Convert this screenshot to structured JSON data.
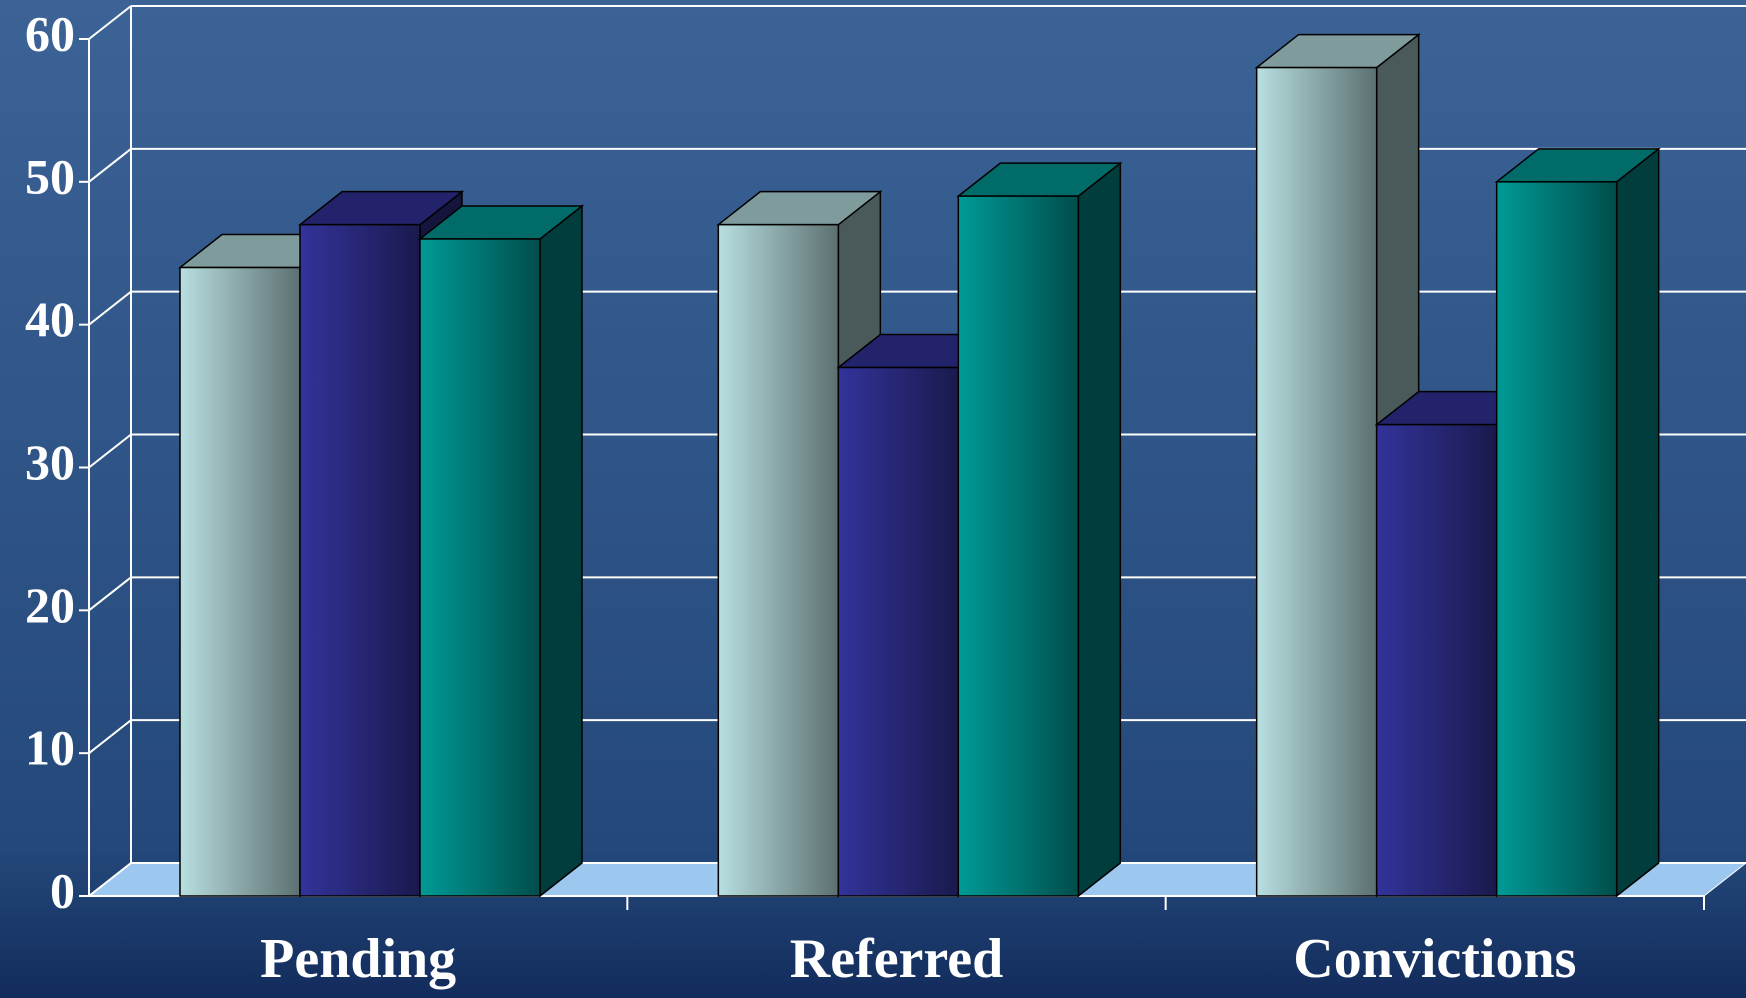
{
  "chart_data": {
    "type": "bar3d",
    "categories": [
      "Pending",
      "Referred",
      "Convictions"
    ],
    "series": [
      {
        "color": "#b8dfe0",
        "values": [
          44,
          47,
          58
        ]
      },
      {
        "color": "#33339a",
        "values": [
          47,
          37,
          33
        ]
      },
      {
        "color": "#009a96",
        "values": [
          46,
          49,
          50
        ]
      }
    ],
    "ylim": [
      0,
      60
    ],
    "yticks": [
      0,
      10,
      20,
      30,
      40,
      50,
      60
    ],
    "grid": true
  }
}
